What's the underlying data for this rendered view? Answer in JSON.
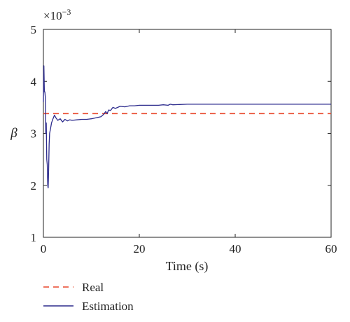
{
  "chart_data": {
    "type": "line",
    "title": "",
    "xlabel": "Time (s)",
    "ylabel": "β",
    "y_multiplier_label": "×10",
    "y_multiplier_exponent": "−3",
    "xlim": [
      0,
      60
    ],
    "ylim": [
      1,
      5
    ],
    "x_ticks": [
      0,
      20,
      40,
      60
    ],
    "y_ticks": [
      1,
      2,
      3,
      4,
      5
    ],
    "grid": false,
    "legend_position": "bottom-left, outside plot",
    "series": [
      {
        "name": "Real",
        "color": "#e8472b",
        "style": "dashed",
        "x": [
          0,
          60
        ],
        "y": [
          3.38,
          3.38
        ]
      },
      {
        "name": "Estimation",
        "color": "#2b2a8c",
        "style": "solid",
        "x": [
          0.0,
          0.1,
          0.2,
          0.3,
          0.4,
          0.5,
          0.6,
          0.7,
          0.8,
          0.9,
          1.0,
          1.1,
          1.2,
          1.3,
          1.5,
          1.7,
          2.0,
          2.3,
          2.6,
          3.0,
          3.5,
          4.0,
          4.5,
          5.0,
          5.5,
          6.0,
          7.0,
          8.0,
          9.0,
          10.0,
          11.0,
          12.0,
          12.5,
          13.0,
          13.3,
          13.6,
          14.0,
          14.5,
          15.0,
          16.0,
          17.0,
          18.0,
          19.0,
          20.0,
          22.0,
          24.0,
          25.0,
          26.0,
          26.5,
          27.0,
          30.0,
          40.0,
          50.0,
          60.0
        ],
        "y": [
          3.6,
          4.3,
          3.8,
          3.8,
          3.7,
          3.0,
          3.2,
          2.5,
          2.4,
          2.0,
          1.95,
          2.3,
          2.8,
          3.0,
          3.1,
          3.2,
          3.28,
          3.35,
          3.3,
          3.25,
          3.28,
          3.22,
          3.27,
          3.24,
          3.26,
          3.25,
          3.26,
          3.27,
          3.27,
          3.28,
          3.3,
          3.32,
          3.36,
          3.42,
          3.38,
          3.45,
          3.44,
          3.5,
          3.48,
          3.52,
          3.51,
          3.53,
          3.53,
          3.54,
          3.54,
          3.54,
          3.55,
          3.54,
          3.56,
          3.55,
          3.56,
          3.56,
          3.56,
          3.56
        ]
      }
    ]
  }
}
